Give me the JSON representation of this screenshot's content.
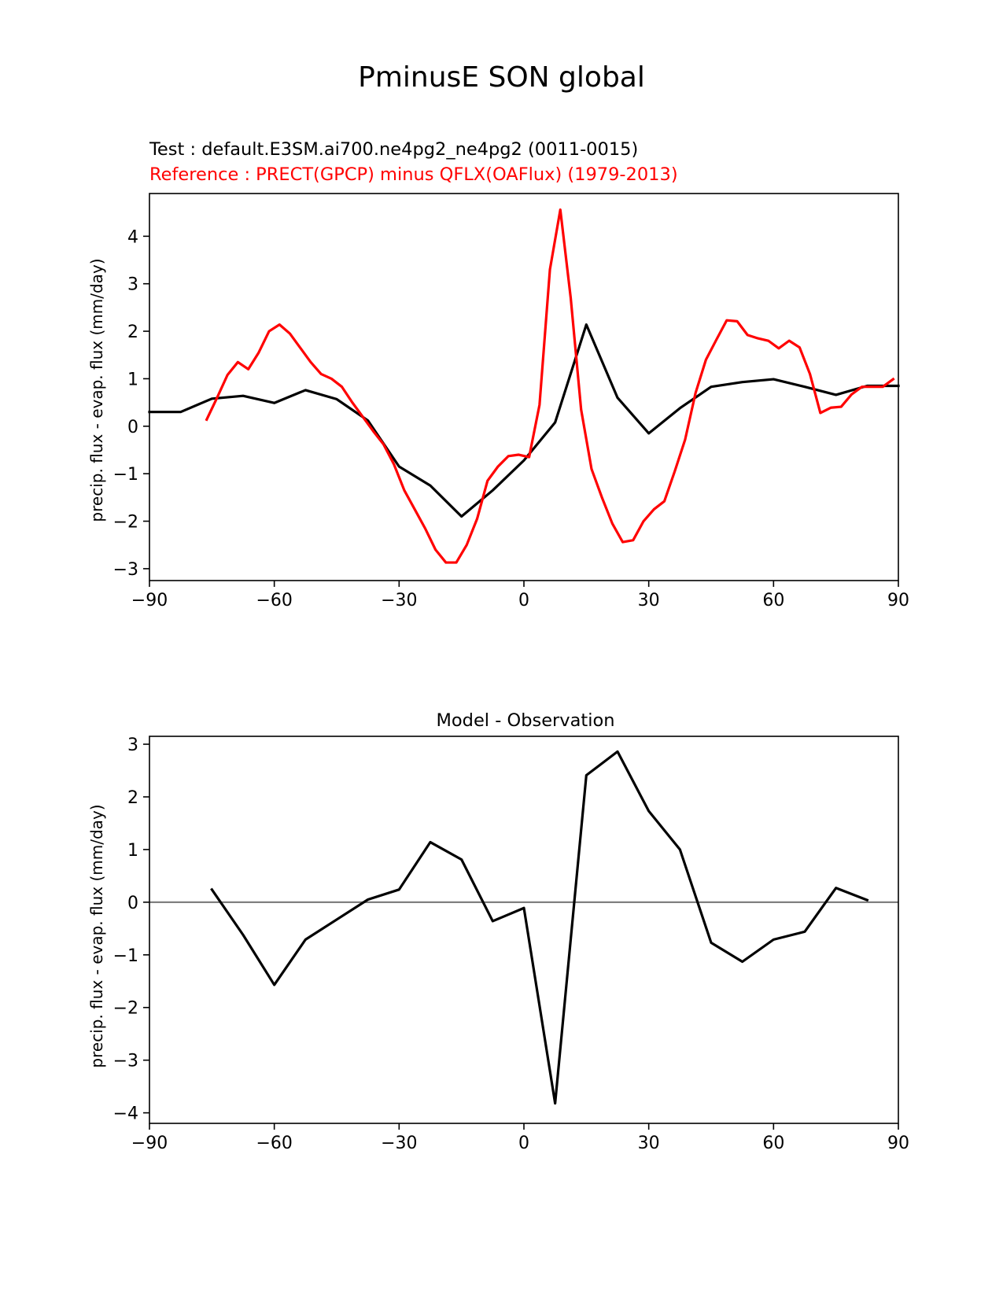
{
  "figure": {
    "title": "PminusE SON global"
  },
  "colors": {
    "test": "#000000",
    "reference": "#ff0000",
    "zero_line": "#808080"
  },
  "chart_data": [
    {
      "type": "line",
      "subtitle_test": "Test : default.E3SM.ai700.ne4pg2_ne4pg2 (0011-0015)",
      "subtitle_reference": "Reference : PRECT(GPCP) minus QFLX(OAFlux) (1979-2013)",
      "xlabel": "",
      "ylabel": "precip. flux - evap. flux (mm/day)",
      "xlim": [
        -90,
        90
      ],
      "ylim": [
        -3.25,
        4.9
      ],
      "xticks": [
        -90,
        -60,
        -30,
        0,
        30,
        60,
        90
      ],
      "xtick_labels": [
        "−90",
        "−60",
        "−30",
        "0",
        "30",
        "60",
        "90"
      ],
      "yticks": [
        -3,
        -2,
        -1,
        0,
        1,
        2,
        3,
        4
      ],
      "ytick_labels": [
        "−3",
        "−2",
        "−1",
        "0",
        "1",
        "2",
        "3",
        "4"
      ],
      "grid": false,
      "series": [
        {
          "role": "test",
          "x": [
            -90,
            -82.5,
            -75,
            -67.5,
            -60,
            -52.5,
            -45,
            -37.5,
            -30,
            -22.5,
            -15,
            -7.5,
            0,
            7.5,
            15,
            22.5,
            30,
            37.5,
            45,
            52.5,
            60,
            67.5,
            75,
            82.5,
            90
          ],
          "y": [
            0.3,
            0.3,
            0.58,
            0.64,
            0.49,
            0.76,
            0.57,
            0.12,
            -0.85,
            -1.25,
            -1.9,
            -1.35,
            -0.72,
            0.08,
            2.14,
            0.6,
            -0.15,
            0.38,
            0.83,
            0.93,
            0.99,
            0.83,
            0.66,
            0.85,
            0.85
          ]
        },
        {
          "role": "reference",
          "x": [
            -76.25,
            -73.75,
            -71.25,
            -68.75,
            -66.25,
            -63.75,
            -61.25,
            -58.75,
            -56.25,
            -53.75,
            -51.25,
            -48.75,
            -46.25,
            -43.75,
            -41.25,
            -38.75,
            -36.25,
            -33.75,
            -31.25,
            -28.75,
            -26.25,
            -23.75,
            -21.25,
            -18.75,
            -16.25,
            -13.75,
            -11.25,
            -8.75,
            -6.25,
            -3.75,
            -1.25,
            1.25,
            3.75,
            6.25,
            8.75,
            11.25,
            13.75,
            16.25,
            18.75,
            21.25,
            23.75,
            26.25,
            28.75,
            31.25,
            33.75,
            36.25,
            38.75,
            41.25,
            43.75,
            46.25,
            48.75,
            51.25,
            53.75,
            56.25,
            58.75,
            61.25,
            63.75,
            66.25,
            68.75,
            71.25,
            73.75,
            76.25,
            78.75,
            81.25,
            83.75,
            86.25,
            88.75
          ],
          "y": [
            0.14,
            0.6,
            1.08,
            1.35,
            1.2,
            1.55,
            2.0,
            2.14,
            1.95,
            1.65,
            1.35,
            1.1,
            1.0,
            0.83,
            0.5,
            0.2,
            -0.1,
            -0.38,
            -0.8,
            -1.35,
            -1.75,
            -2.15,
            -2.6,
            -2.87,
            -2.87,
            -2.5,
            -1.95,
            -1.15,
            -0.85,
            -0.63,
            -0.6,
            -0.65,
            0.45,
            3.3,
            4.56,
            2.7,
            0.35,
            -0.9,
            -1.5,
            -2.05,
            -2.44,
            -2.4,
            -2.0,
            -1.75,
            -1.58,
            -0.95,
            -0.28,
            0.7,
            1.4,
            1.82,
            2.23,
            2.21,
            1.92,
            1.85,
            1.8,
            1.64,
            1.8,
            1.66,
            1.1,
            0.28,
            0.39,
            0.41,
            0.67,
            0.83,
            0.83,
            0.83,
            0.99
          ]
        }
      ]
    },
    {
      "type": "line",
      "title": "Model - Observation",
      "xlabel": "",
      "ylabel": "precip. flux - evap. flux (mm/day)",
      "xlim": [
        -90,
        90
      ],
      "ylim": [
        -4.2,
        3.15
      ],
      "xticks": [
        -90,
        -60,
        -30,
        0,
        30,
        60,
        90
      ],
      "xtick_labels": [
        "−90",
        "−60",
        "−30",
        "0",
        "30",
        "60",
        "90"
      ],
      "yticks": [
        -4,
        -3,
        -2,
        -1,
        0,
        1,
        2,
        3
      ],
      "ytick_labels": [
        "−4",
        "−3",
        "−2",
        "−1",
        "0",
        "1",
        "2",
        "3"
      ],
      "grid": false,
      "zero_line": 0,
      "series": [
        {
          "role": "difference",
          "x": [
            -75,
            -67.5,
            -60,
            -52.5,
            -45,
            -37.5,
            -30,
            -22.5,
            -15,
            -7.5,
            0,
            7.5,
            15,
            22.5,
            30,
            37.5,
            45,
            52.5,
            60,
            67.5,
            75,
            82.5
          ],
          "y": [
            0.24,
            -0.62,
            -1.57,
            -0.71,
            -0.33,
            0.05,
            0.24,
            1.14,
            0.81,
            -0.36,
            -0.11,
            -3.82,
            2.41,
            2.86,
            1.73,
            1.0,
            -0.77,
            -1.13,
            -0.71,
            -0.56,
            0.27,
            0.04
          ]
        }
      ]
    }
  ]
}
